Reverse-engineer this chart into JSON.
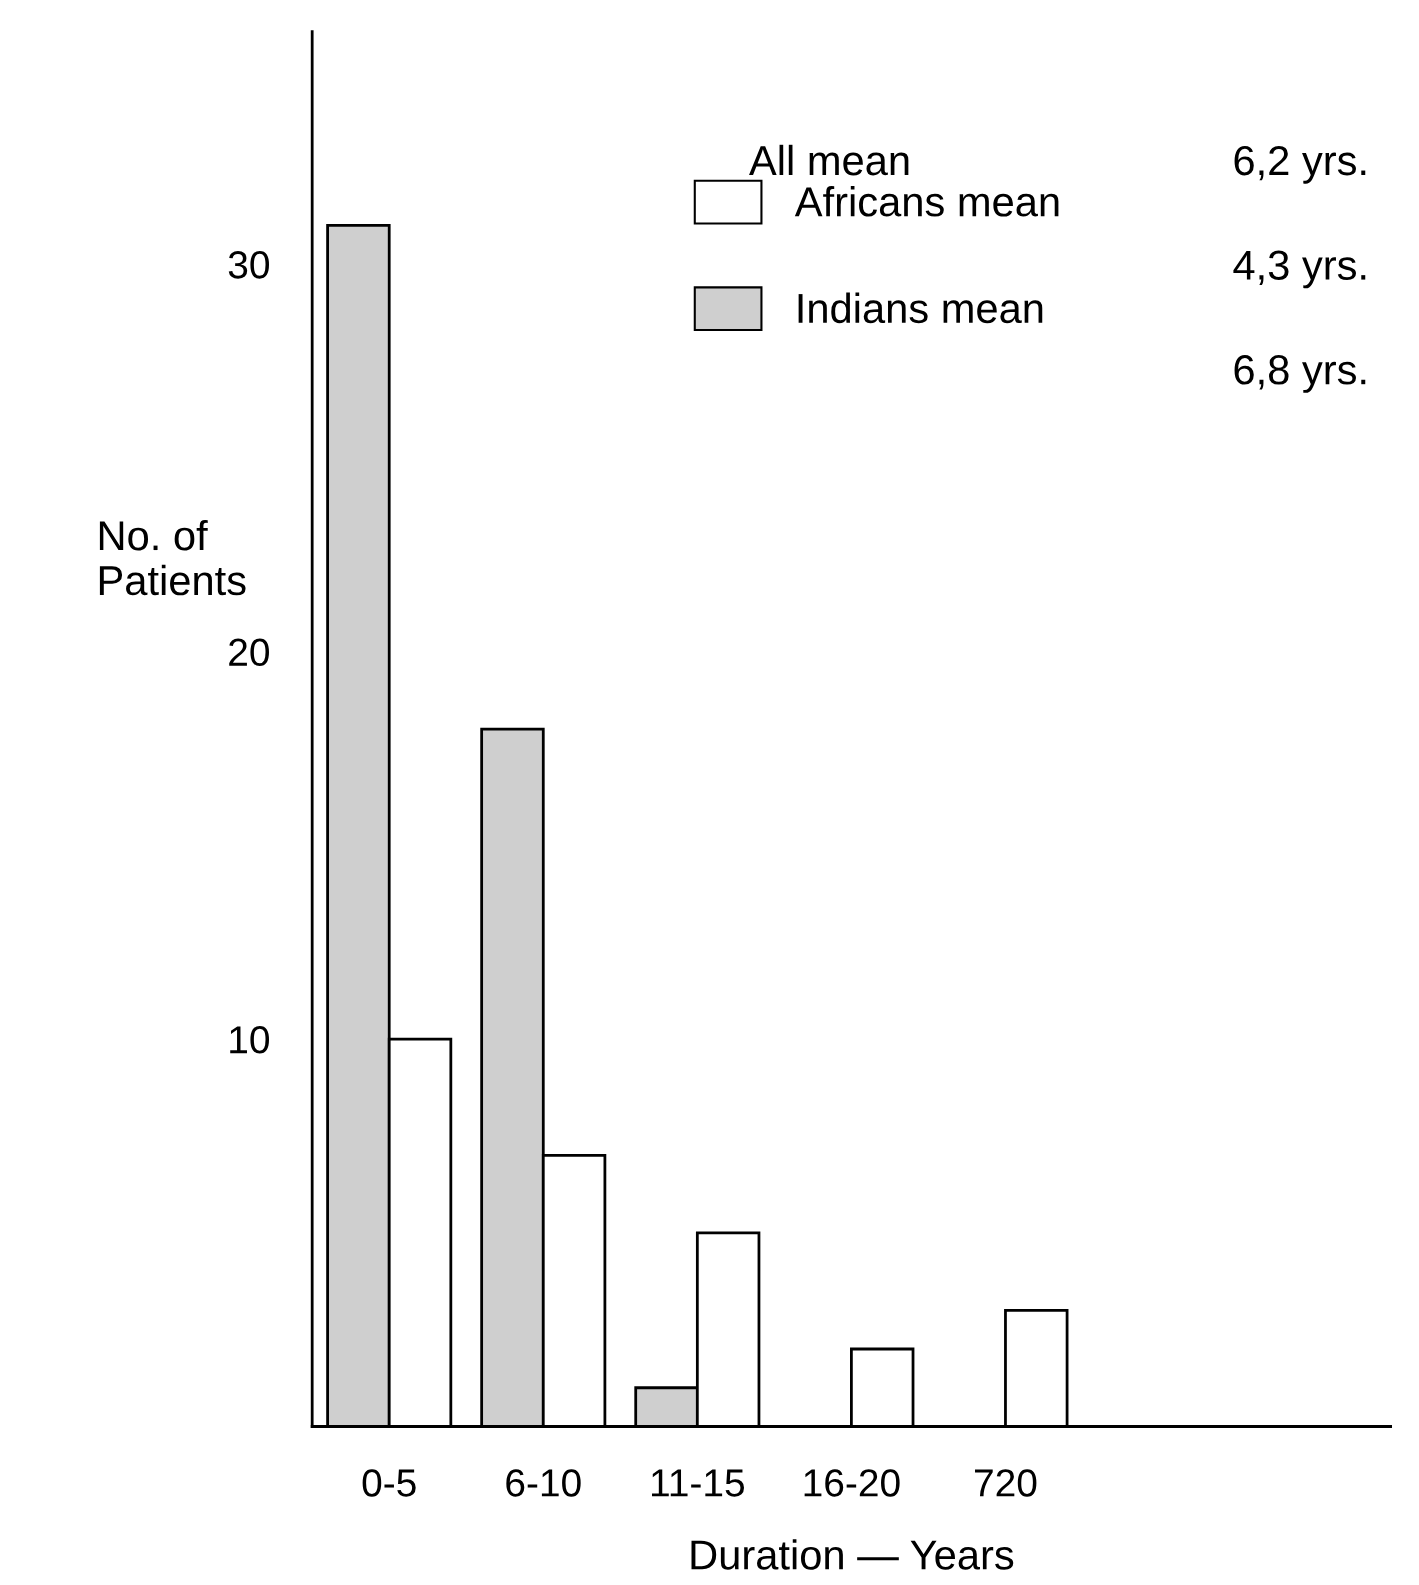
{
  "chart_data": {
    "type": "bar",
    "xlabel": "Duration — Years",
    "ylabel": "No. of\nPatients",
    "categories": [
      "0-5",
      "6-10",
      "11-15",
      "16-20",
      "720"
    ],
    "series": [
      {
        "name": "Indians mean",
        "color": "#cfcfcf",
        "values": [
          31,
          18,
          1,
          null,
          null
        ]
      },
      {
        "name": "Africans mean",
        "color": "#ffffff",
        "values": [
          10,
          7,
          5,
          2,
          3
        ]
      }
    ],
    "ylim": [
      0,
      36
    ],
    "yticks": [
      10,
      20,
      30
    ],
    "grid": false,
    "legend": "top right",
    "annotations": [
      "All mean",
      "6,2 yrs.",
      "4,3 yrs.",
      "6,8 yrs."
    ]
  }
}
